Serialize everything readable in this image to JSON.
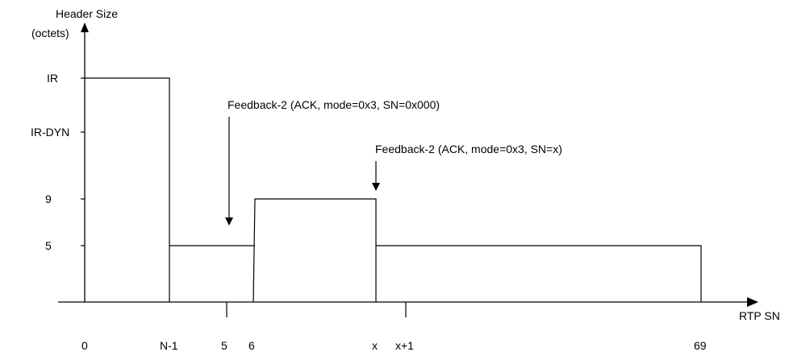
{
  "y_axis": {
    "title_line1": "Header Size",
    "title_line2": "(octets)",
    "ticks": [
      "IR",
      "IR-DYN",
      "9",
      "5"
    ]
  },
  "x_axis": {
    "title": "RTP SN",
    "ticks": [
      "0",
      "N-1",
      "5",
      "6",
      "x",
      "x+1",
      "69"
    ]
  },
  "annotations": {
    "feedback_1": "Feedback-2 (ACK, mode=0x3, SN=0x000)",
    "feedback_2": "Feedback-2 (ACK, mode=0x3, SN=x)"
  }
}
